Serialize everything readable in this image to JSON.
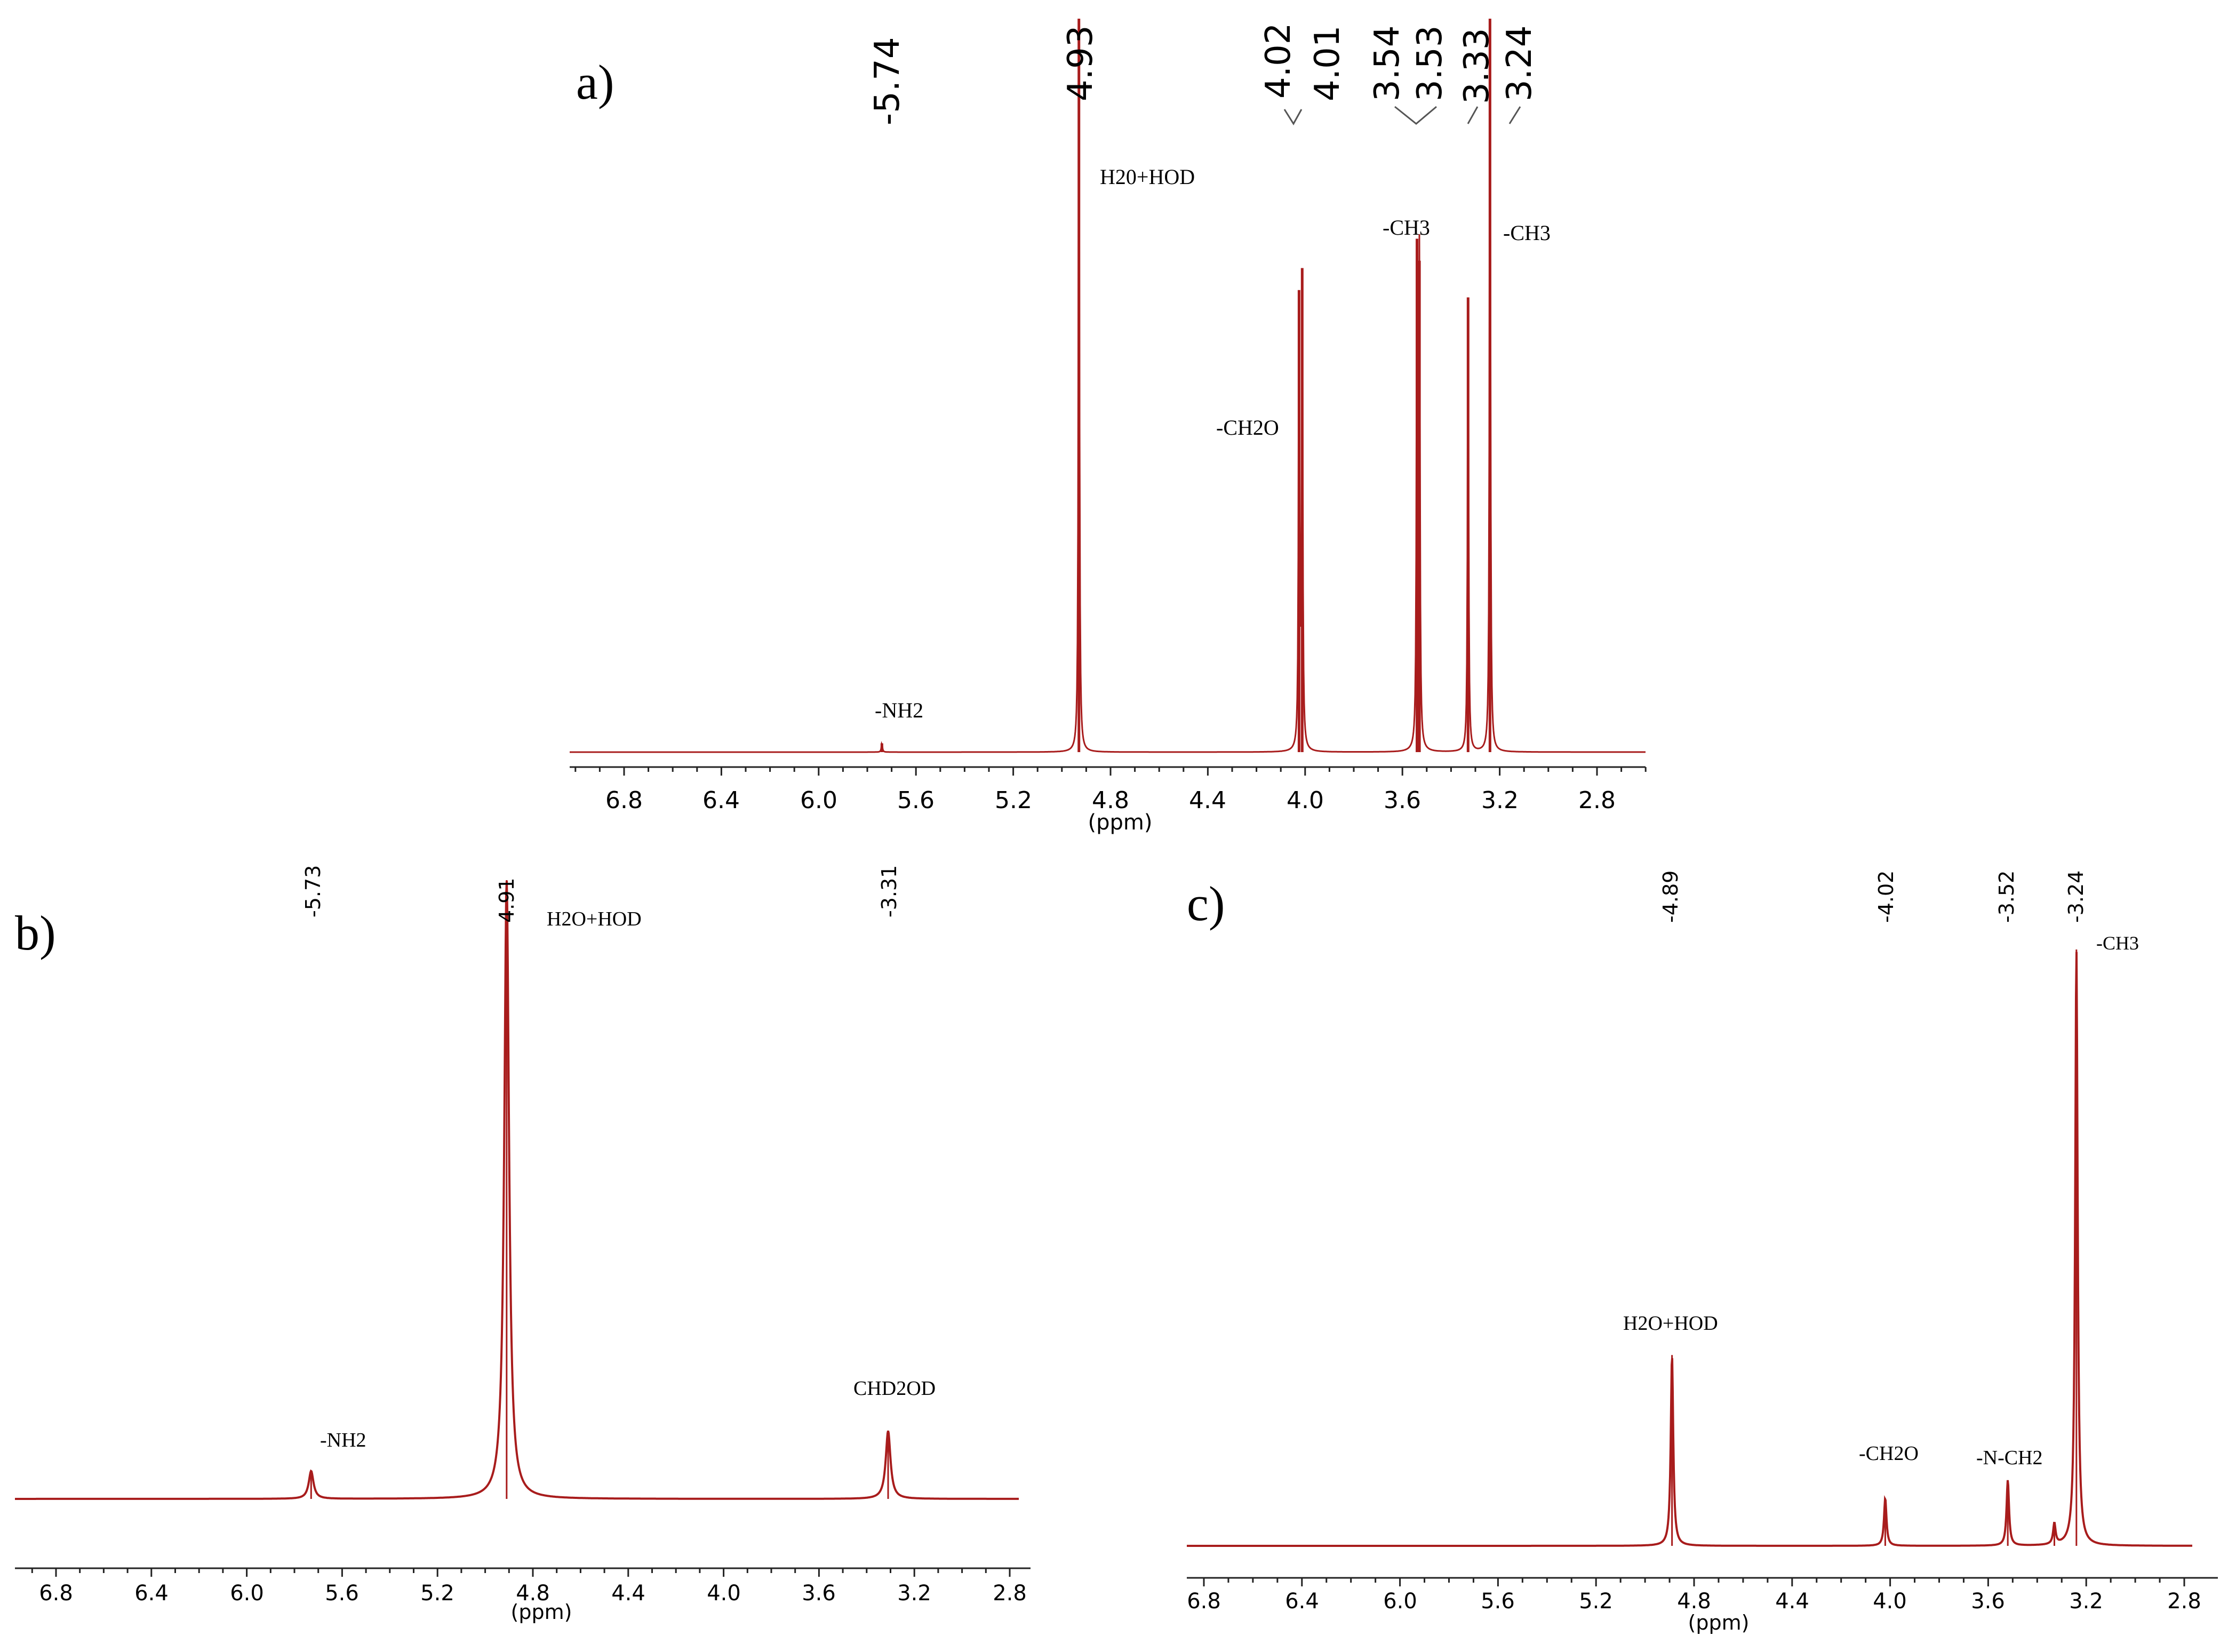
{
  "colors": {
    "spectrum": "#a81c1c",
    "baseline_a": "#e07a7a",
    "axis": "#222222",
    "text": "#000000"
  },
  "chart_data": [
    {
      "id": "a",
      "panel_label": "a)",
      "type": "line",
      "xlabel": "(ppm)",
      "x_ticks": [
        "6.8",
        "6.4",
        "6.0",
        "5.6",
        "5.2",
        "4.8",
        "4.4",
        "4.0",
        "3.6",
        "3.2",
        "2.8"
      ],
      "peak_picks": [
        "-5.74",
        "4.93",
        "4.02",
        "4.01",
        "3.54",
        "3.53",
        "3.33",
        "3.24"
      ],
      "annotations": [
        "H20+HOD",
        "-CH3",
        "-CH3",
        "-CH2O",
        "-NH2"
      ],
      "peaks": [
        {
          "ppm": 5.74,
          "height": 0.012
        },
        {
          "ppm": 4.93,
          "height": 1.0
        },
        {
          "ppm": 4.025,
          "height": 0.63
        },
        {
          "ppm": 4.012,
          "height": 0.66
        },
        {
          "ppm": 3.54,
          "height": 0.7
        },
        {
          "ppm": 3.53,
          "height": 0.67
        },
        {
          "ppm": 3.33,
          "height": 0.62
        },
        {
          "ppm": 3.24,
          "height": 1.0
        }
      ]
    },
    {
      "id": "b",
      "panel_label": "b)",
      "type": "line",
      "xlabel": "(ppm)",
      "x_ticks": [
        "6.8",
        "6.4",
        "6.0",
        "5.6",
        "5.2",
        "4.8",
        "4.4",
        "4.0",
        "3.6",
        "3.2",
        "2.8"
      ],
      "peak_picks": [
        "-5.73",
        "4.91",
        "-3.31"
      ],
      "annotations": [
        "H2O+HOD",
        "CHD2OD",
        "-NH2"
      ],
      "peaks": [
        {
          "ppm": 5.73,
          "height": 0.045
        },
        {
          "ppm": 4.91,
          "height": 1.0
        },
        {
          "ppm": 3.31,
          "height": 0.11
        }
      ]
    },
    {
      "id": "c",
      "panel_label": "c)",
      "type": "line",
      "xlabel": "(ppm)",
      "x_ticks": [
        "6.8",
        "6.4",
        "6.0",
        "5.6",
        "5.2",
        "4.8",
        "4.4",
        "4.0",
        "3.6",
        "3.2",
        "2.8"
      ],
      "peak_picks": [
        "-4.89",
        "-4.02",
        "-3.52",
        "-3.24"
      ],
      "annotations": [
        "-CH3",
        "H2O+HOD",
        "-CH2O",
        "-N-CH2"
      ],
      "peaks": [
        {
          "ppm": 4.89,
          "height": 0.32
        },
        {
          "ppm": 4.02,
          "height": 0.08
        },
        {
          "ppm": 3.52,
          "height": 0.11
        },
        {
          "ppm": 3.33,
          "height": 0.035
        },
        {
          "ppm": 3.24,
          "height": 1.0
        }
      ]
    }
  ]
}
